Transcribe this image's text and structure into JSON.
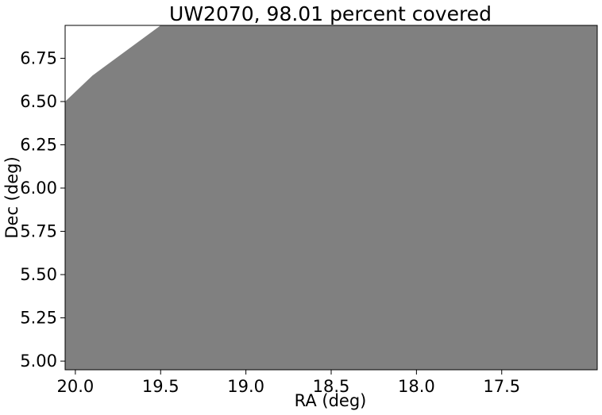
{
  "chart_data": {
    "type": "area",
    "title": "UW2070, 98.01 percent covered",
    "xlabel": "RA (deg)",
    "ylabel": "Dec (deg)",
    "xlim": [
      20.06,
      16.94
    ],
    "ylim": [
      4.95,
      6.94
    ],
    "x_inverted": true,
    "grid": false,
    "xticks": [
      20.0,
      19.5,
      19.0,
      18.5,
      18.0,
      17.5
    ],
    "xtick_labels": [
      "20.0",
      "19.5",
      "19.0",
      "18.5",
      "18.0",
      "17.5"
    ],
    "yticks": [
      5.0,
      5.25,
      5.5,
      5.75,
      6.0,
      6.25,
      6.5,
      6.75
    ],
    "ytick_labels": [
      "5.00",
      "5.25",
      "5.50",
      "5.75",
      "6.00",
      "6.25",
      "6.50",
      "6.75"
    ],
    "series": [
      {
        "color": "#808080",
        "polygon": [
          [
            20.06,
            4.95
          ],
          [
            20.06,
            6.5
          ],
          [
            19.9,
            6.65
          ],
          [
            19.5,
            6.94
          ],
          [
            16.94,
            6.94
          ],
          [
            16.94,
            4.95
          ]
        ]
      }
    ]
  }
}
